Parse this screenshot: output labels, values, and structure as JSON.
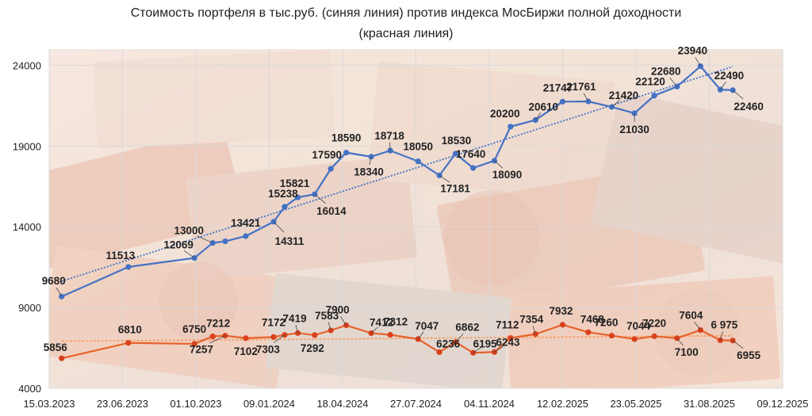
{
  "chart_data": {
    "type": "line",
    "title": [
      "Стоимость портфеля в тыс.руб. (синяя линия) против индекса МосБиржи полной доходности",
      "(красная линия)"
    ],
    "x_ticks": [
      "15.03.2023",
      "23.06.2023",
      "01.10.2023",
      "09.01.2024",
      "18.04.2024",
      "27.07.2024",
      "04.11.2024",
      "12.02.2025",
      "23.05.2025",
      "31.08.2025",
      "09.12.2025"
    ],
    "y_ticks": [
      "4000",
      "9000",
      "14000",
      "19000",
      "24000"
    ],
    "ylim": [
      4000,
      25000
    ],
    "grid": true,
    "colors": {
      "blue": "#4472c4",
      "red": "#e8622a",
      "blue_trend": "#4472c4",
      "red_trend": "#f4a06a",
      "grid": "#d9d9d9"
    },
    "series": [
      {
        "color": "blue",
        "x": [
          "2023-04-01",
          "2023-07-01",
          "2023-09-29",
          "2023-10-24",
          "2023-11-10",
          "2023-12-08",
          "2024-01-15",
          "2024-01-30",
          "2024-02-17",
          "2024-03-11",
          "2024-04-02",
          "2024-04-23",
          "2024-05-27",
          "2024-06-22",
          "2024-07-30",
          "2024-08-28",
          "2024-09-19",
          "2024-10-13",
          "2024-11-11",
          "2024-12-03",
          "2025-01-06",
          "2025-02-12",
          "2025-03-19",
          "2025-04-20",
          "2025-05-21",
          "2025-06-17",
          "2025-07-18",
          "2025-08-19",
          "2025-09-15",
          "2025-10-02"
        ],
        "values": [
          9680,
          11513,
          12069,
          13000,
          13100,
          13421,
          14311,
          15238,
          15821,
          16014,
          17590,
          18590,
          18340,
          18718,
          18050,
          17181,
          18530,
          17640,
          18090,
          20200,
          20610,
          21747,
          21761,
          21420,
          21030,
          22120,
          22680,
          23940,
          22490,
          22460
        ],
        "labels": [
          "9680",
          "11513",
          "12069",
          "13000",
          "",
          "13421",
          "14311",
          "15238",
          "15821",
          "16014",
          "17590",
          "18590",
          "18340",
          "18718",
          "18050",
          "17181",
          "18530",
          "17640",
          "18090",
          "20200",
          "20610",
          "21747",
          "21761",
          "21420",
          "21030",
          "22120",
          "22680",
          "23940",
          "22490",
          "22460"
        ]
      },
      {
        "color": "red",
        "x": [
          "2023-04-01",
          "2023-07-01",
          "2023-09-29",
          "2023-10-24",
          "2023-11-10",
          "2023-12-08",
          "2024-01-15",
          "2024-01-30",
          "2024-02-17",
          "2024-03-11",
          "2024-04-02",
          "2024-04-23",
          "2024-05-27",
          "2024-06-22",
          "2024-07-30",
          "2024-08-28",
          "2024-09-19",
          "2024-10-13",
          "2024-11-11",
          "2024-12-03",
          "2025-01-06",
          "2025-02-12",
          "2025-03-19",
          "2025-04-20",
          "2025-05-21",
          "2025-06-17",
          "2025-07-18",
          "2025-08-19",
          "2025-09-15",
          "2025-10-02"
        ],
        "values": [
          5856,
          6810,
          6750,
          7212,
          7257,
          7102,
          7172,
          7303,
          7419,
          7292,
          7583,
          7900,
          7412,
          7312,
          7047,
          6236,
          6862,
          6195,
          6243,
          7112,
          7354,
          7932,
          7468,
          7260,
          7044,
          7220,
          7100,
          7604,
          6975,
          6955
        ],
        "labels": [
          "5856",
          "6810",
          "6750",
          "7212",
          "7257",
          "7102",
          "7172",
          "7303",
          "7419",
          "7292",
          "7583",
          "7900",
          "7412",
          "7312",
          "7047",
          "6236",
          "6862",
          "6195",
          "6243",
          "7112",
          "7354",
          "7932",
          "7468",
          "7260",
          "7044",
          "7220",
          "7100",
          "7604",
          "6 975",
          "6955"
        ]
      }
    ]
  }
}
